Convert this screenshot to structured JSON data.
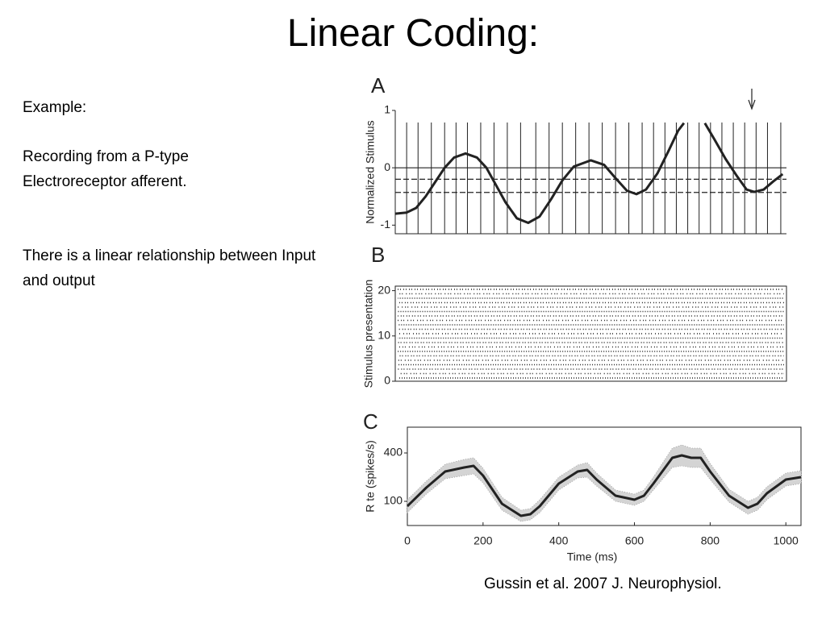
{
  "title": "Linear Coding:",
  "body": [
    "Example:",
    "Recording from a P-type Electroreceptor afferent.",
    "There is a linear relationship between Input and output"
  ],
  "citation": "Gussin et al. 2007 J. Neurophysiol.",
  "chart_data": [
    {
      "type": "line",
      "label": "A",
      "ylabel": "Normalized Stimulus",
      "color": "#222222",
      "xlim": [
        -30,
        1000
      ],
      "ylim": [
        -1.15,
        1
      ],
      "yticks": [
        1,
        0,
        -1
      ],
      "x": [
        -30,
        0,
        25,
        50,
        75,
        100,
        125,
        155,
        185,
        210,
        235,
        260,
        290,
        320,
        350,
        380,
        410,
        440,
        485,
        520,
        550,
        580,
        605,
        630,
        660,
        690,
        715,
        730,
        750,
        770,
        785,
        810,
        840,
        870,
        895,
        915,
        940,
        965,
        990
      ],
      "values": [
        -0.8,
        -0.78,
        -0.7,
        -0.5,
        -0.25,
        0.0,
        0.18,
        0.25,
        0.18,
        0.0,
        -0.3,
        -0.6,
        -0.88,
        -0.96,
        -0.85,
        -0.55,
        -0.22,
        0.02,
        0.13,
        0.05,
        -0.18,
        -0.4,
        -0.46,
        -0.38,
        -0.1,
        0.3,
        0.65,
        0.78,
        null,
        null,
        0.78,
        0.5,
        0.15,
        -0.15,
        -0.38,
        -0.42,
        -0.38,
        -0.24,
        -0.11
      ],
      "reference_lines": [
        {
          "value": 0,
          "dashed": false
        },
        {
          "value": -0.2,
          "dashed": true
        },
        {
          "value": -0.43,
          "dashed": true
        }
      ],
      "spike_times": [
        0,
        30,
        65,
        100,
        130,
        160,
        195,
        230,
        265,
        300,
        340,
        375,
        410,
        445,
        480,
        515,
        550,
        585,
        620,
        650,
        680,
        710,
        740,
        770,
        800,
        830,
        860,
        890,
        920,
        950,
        985
      ]
    },
    {
      "type": "raster",
      "label": "B",
      "ylabel": "Stimulus presentation",
      "color": "#222222",
      "xlim": [
        -30,
        1000
      ],
      "ylim": [
        0,
        21
      ],
      "yticks": [
        20,
        10,
        0
      ]
    },
    {
      "type": "band-line",
      "label": "C",
      "ylabel": "R te (spikes/s)",
      "xlabel": "Time (ms)",
      "color": "#222222",
      "band_color": "#d4d4d4",
      "xlim": [
        0,
        1040
      ],
      "ylim": [
        -50,
        560
      ],
      "xticks": [
        0,
        200,
        400,
        600,
        800,
        1000
      ],
      "yticks": [
        400,
        100
      ],
      "x": [
        0,
        50,
        100,
        150,
        175,
        200,
        250,
        300,
        325,
        350,
        400,
        450,
        475,
        500,
        550,
        600,
        625,
        650,
        700,
        725,
        750,
        775,
        800,
        850,
        900,
        925,
        950,
        1000,
        1040
      ],
      "values": [
        70,
        185,
        285,
        310,
        320,
        260,
        85,
        10,
        20,
        70,
        210,
        285,
        295,
        235,
        135,
        110,
        135,
        210,
        370,
        385,
        370,
        370,
        285,
        135,
        60,
        85,
        150,
        235,
        250
      ],
      "lower": [
        30,
        145,
        240,
        260,
        270,
        215,
        45,
        -25,
        -15,
        30,
        170,
        245,
        250,
        195,
        100,
        75,
        100,
        170,
        310,
        320,
        310,
        310,
        235,
        95,
        20,
        45,
        110,
        195,
        210
      ],
      "upper": [
        110,
        225,
        330,
        360,
        370,
        305,
        125,
        45,
        55,
        110,
        250,
        325,
        340,
        275,
        170,
        145,
        170,
        250,
        430,
        450,
        430,
        430,
        335,
        175,
        100,
        125,
        190,
        275,
        290
      ]
    }
  ]
}
